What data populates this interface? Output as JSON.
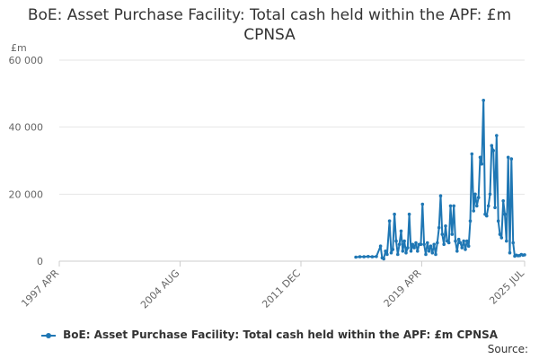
{
  "chart_data": {
    "type": "line",
    "title": "BoE: Asset Purchase Facility: Total cash held within the APF: £m CPNSA",
    "ylabel": "£m",
    "y_ticks": [
      0,
      20000,
      40000,
      60000
    ],
    "y_tick_labels": [
      "0",
      "20 000",
      "40 000",
      "60 000"
    ],
    "ylim": [
      0,
      60000
    ],
    "x_ticks": [
      1997.25,
      2004.58,
      2011.92,
      2019.25,
      2025.5
    ],
    "x_tick_labels": [
      "1997 APR",
      "2004 AUG",
      "2011 DEC",
      "2019 APR",
      "2025 JUL"
    ],
    "xlim": [
      1997.25,
      2025.5
    ],
    "grid": "horizontal",
    "legend_position": "bottom",
    "series": [
      {
        "name": "BoE: Asset Purchase Facility: Total cash held within the APF: £m CPNSA",
        "color": "#1f77b4",
        "x": [
          2015.25,
          2015.5,
          2015.75,
          2016.0,
          2016.25,
          2016.5,
          2016.75,
          2016.85,
          2016.95,
          2017.05,
          2017.15,
          2017.3,
          2017.4,
          2017.5,
          2017.6,
          2017.7,
          2017.8,
          2017.9,
          2018.0,
          2018.1,
          2018.2,
          2018.3,
          2018.4,
          2018.5,
          2018.6,
          2018.7,
          2018.8,
          2018.9,
          2019.0,
          2019.1,
          2019.2,
          2019.3,
          2019.4,
          2019.5,
          2019.6,
          2019.7,
          2019.8,
          2019.9,
          2020.0,
          2020.1,
          2020.2,
          2020.3,
          2020.4,
          2020.5,
          2020.6,
          2020.7,
          2020.8,
          2020.9,
          2021.0,
          2021.1,
          2021.2,
          2021.3,
          2021.4,
          2021.5,
          2021.6,
          2021.7,
          2021.8,
          2021.9,
          2022.0,
          2022.1,
          2022.2,
          2022.3,
          2022.4,
          2022.5,
          2022.6,
          2022.7,
          2022.8,
          2022.9,
          2023.0,
          2023.1,
          2023.2,
          2023.3,
          2023.4,
          2023.5,
          2023.6,
          2023.7,
          2023.8,
          2023.9,
          2024.0,
          2024.1,
          2024.2,
          2024.3,
          2024.4,
          2024.5,
          2024.6,
          2024.7,
          2024.8,
          2024.9,
          2025.0,
          2025.1,
          2025.2,
          2025.3,
          2025.4,
          2025.5
        ],
        "values": [
          1200,
          1300,
          1300,
          1400,
          1300,
          1400,
          4500,
          1000,
          700,
          3000,
          2000,
          12000,
          2500,
          3500,
          14000,
          6000,
          2000,
          5000,
          9000,
          3000,
          6000,
          2500,
          4000,
          14000,
          3000,
          5000,
          4000,
          5500,
          3000,
          5000,
          5000,
          17000,
          5000,
          2000,
          5500,
          3000,
          4500,
          2500,
          5000,
          2000,
          5500,
          10000,
          19500,
          8000,
          5000,
          10500,
          6000,
          5500,
          16500,
          8000,
          16500,
          6000,
          3000,
          6500,
          5500,
          4000,
          6000,
          3500,
          6000,
          4500,
          12000,
          32000,
          15000,
          20000,
          16500,
          19000,
          31000,
          29000,
          48000,
          14000,
          13500,
          16500,
          20000,
          34500,
          33000,
          16000,
          37500,
          12000,
          8000,
          7000,
          18000,
          14000,
          6000,
          31000,
          2500,
          30500,
          5500,
          1500,
          1800,
          1600,
          1700,
          2000,
          1800,
          1900
        ]
      }
    ]
  },
  "legend_label": "BoE: Asset Purchase Facility: Total cash held within the APF: £m CPNSA",
  "source_label": "Source:"
}
